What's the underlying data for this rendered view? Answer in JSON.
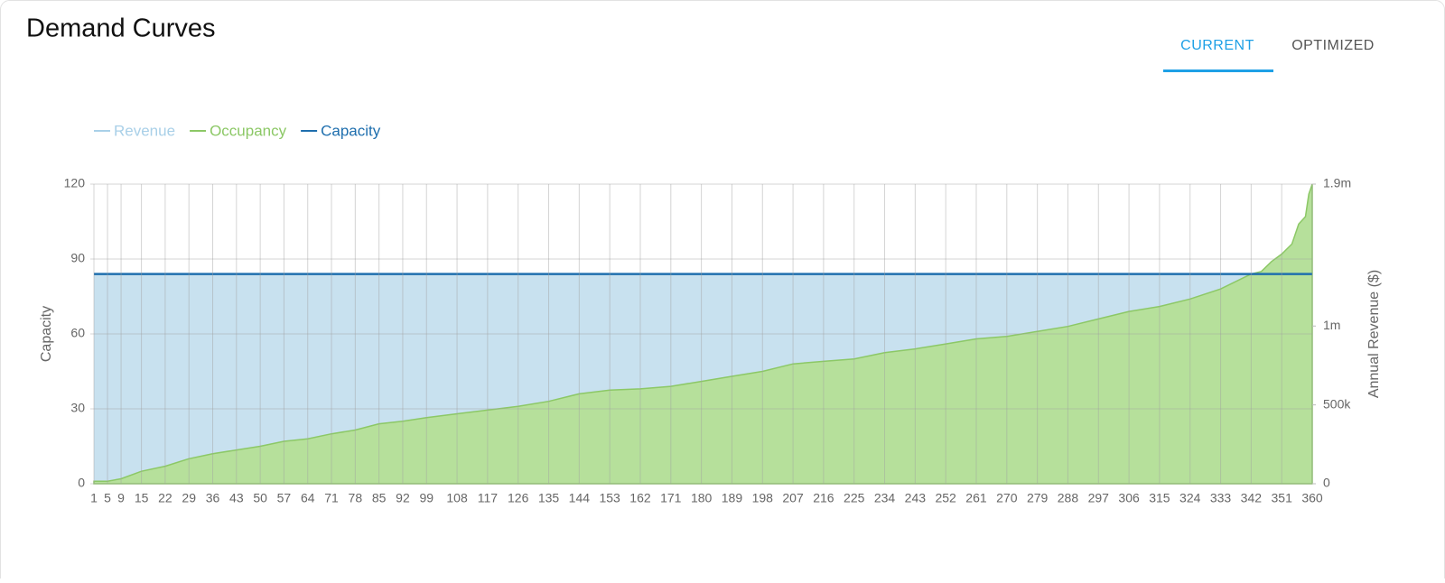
{
  "tabs": [
    "CURRENT",
    "OPTIMIZED"
  ],
  "active_tab": 0,
  "chart_data": {
    "type": "area",
    "title": "Demand Curves",
    "y_label": "Capacity",
    "y2_label": "Annual Revenue ($)",
    "grid": true,
    "legend": "top-left",
    "x": [
      1,
      5,
      9,
      15,
      22,
      29,
      36,
      43,
      50,
      57,
      64,
      71,
      78,
      85,
      92,
      99,
      108,
      117,
      126,
      135,
      144,
      153,
      162,
      171,
      180,
      189,
      198,
      207,
      216,
      225,
      234,
      243,
      252,
      261,
      270,
      279,
      288,
      297,
      306,
      315,
      324,
      333,
      342,
      345,
      348,
      351,
      354,
      356,
      358,
      359,
      360
    ],
    "xlim": [
      1,
      360
    ],
    "xticks": [
      1,
      5,
      9,
      15,
      22,
      29,
      36,
      43,
      50,
      57,
      64,
      71,
      78,
      85,
      92,
      99,
      108,
      117,
      126,
      135,
      144,
      153,
      162,
      171,
      180,
      189,
      198,
      207,
      216,
      225,
      234,
      243,
      252,
      261,
      270,
      279,
      288,
      297,
      306,
      315,
      324,
      333,
      342,
      351,
      360
    ],
    "ylim": [
      0,
      120
    ],
    "yticks": [
      0,
      30,
      60,
      90,
      120
    ],
    "y2lim": [
      0,
      1900000
    ],
    "y2ticks": [
      {
        "value": 0,
        "label": "0"
      },
      {
        "value": 500000,
        "label": "500k"
      },
      {
        "value": 1000000,
        "label": "1m"
      },
      {
        "value": 1900000,
        "label": "1.9m"
      }
    ],
    "series": [
      {
        "name": "Revenue",
        "type": "area",
        "axis": "y2",
        "color": "#a9d0e8",
        "values": [
          1330000,
          1330000,
          1330000,
          1330000,
          1330000,
          1330000,
          1330000,
          1330000,
          1330000,
          1330000,
          1330000,
          1330000,
          1330000,
          1330000,
          1330000,
          1330000,
          1330000,
          1330000,
          1330000,
          1330000,
          1330000,
          1330000,
          1330000,
          1330000,
          1330000,
          1330000,
          1330000,
          1330000,
          1330000,
          1330000,
          1330000,
          1330000,
          1330000,
          1330000,
          1330000,
          1330000,
          1330000,
          1330000,
          1330000,
          1330000,
          1330000,
          1330000,
          1330000,
          1330000,
          1330000,
          1330000,
          1330000,
          1330000,
          1330000,
          1330000,
          1330000
        ]
      },
      {
        "name": "Occupancy",
        "type": "area",
        "color": "#8cc866",
        "values": [
          1,
          1,
          2,
          5,
          7,
          10,
          12,
          13.5,
          15,
          17,
          18,
          20,
          21.5,
          24,
          25,
          26.5,
          28,
          29.5,
          31,
          33,
          36,
          37.5,
          38,
          39,
          41,
          43,
          45,
          48,
          49,
          50,
          52.5,
          54,
          56,
          58,
          59,
          61,
          63,
          66,
          69,
          71,
          74,
          78,
          84,
          85,
          89,
          92,
          96,
          104,
          107,
          116,
          120
        ]
      },
      {
        "name": "Capacity",
        "type": "line",
        "color": "#1f6fae",
        "values": [
          84,
          84,
          84,
          84,
          84,
          84,
          84,
          84,
          84,
          84,
          84,
          84,
          84,
          84,
          84,
          84,
          84,
          84,
          84,
          84,
          84,
          84,
          84,
          84,
          84,
          84,
          84,
          84,
          84,
          84,
          84,
          84,
          84,
          84,
          84,
          84,
          84,
          84,
          84,
          84,
          84,
          84,
          84,
          84,
          84,
          84,
          84,
          84,
          84,
          84,
          84
        ]
      }
    ]
  }
}
